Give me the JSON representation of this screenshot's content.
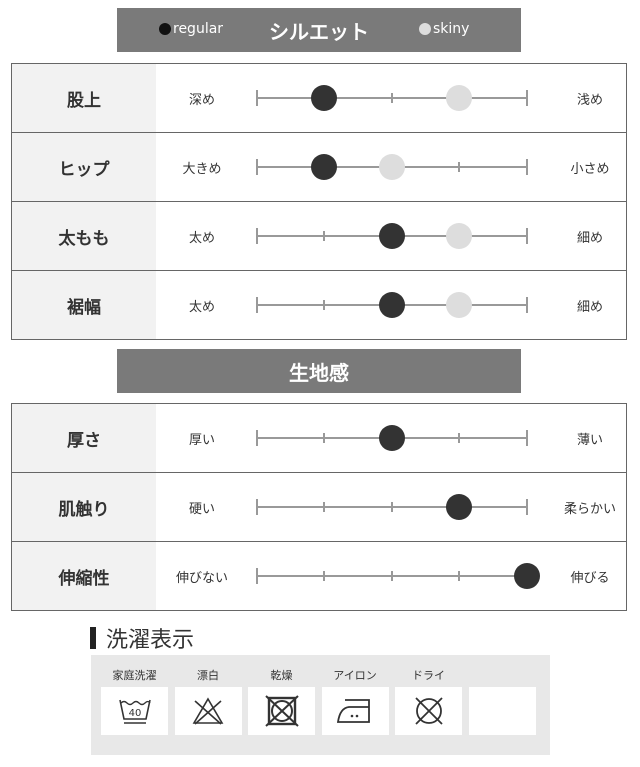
{
  "silhouette": {
    "title": "シルエット",
    "legend_regular": "regular",
    "legend_skiny": "skiny",
    "regular_color": "#333333",
    "skiny_color": "#dddddd",
    "rows": [
      {
        "label": "股上",
        "left": "深め",
        "right": "浅め",
        "regular": 1,
        "skiny": 3
      },
      {
        "label": "ヒップ",
        "left": "大きめ",
        "right": "小さめ",
        "regular": 1,
        "skiny": 2
      },
      {
        "label": "太もも",
        "left": "太め",
        "right": "細め",
        "regular": 2,
        "skiny": 3
      },
      {
        "label": "裾幅",
        "left": "太め",
        "right": "細め",
        "regular": 2,
        "skiny": 3
      }
    ]
  },
  "fabric": {
    "title": "生地感",
    "rows": [
      {
        "label": "厚さ",
        "left": "厚い",
        "right": "薄い",
        "value": 2
      },
      {
        "label": "肌触り",
        "left": "硬い",
        "right": "柔らかい",
        "value": 3
      },
      {
        "label": "伸縮性",
        "left": "伸びない",
        "right": "伸びる",
        "value": 4
      }
    ]
  },
  "laundry": {
    "title": "洗濯表示",
    "items": [
      {
        "label": "家庭洗濯",
        "icon": "wash-40-icon",
        "temp": "40"
      },
      {
        "label": "漂白",
        "icon": "no-bleach-icon"
      },
      {
        "label": "乾燥",
        "icon": "no-tumble-dry-icon"
      },
      {
        "label": "アイロン",
        "icon": "iron-medium-icon"
      },
      {
        "label": "ドライ",
        "icon": "no-dry-clean-icon"
      },
      {
        "label": "",
        "icon": ""
      }
    ]
  }
}
